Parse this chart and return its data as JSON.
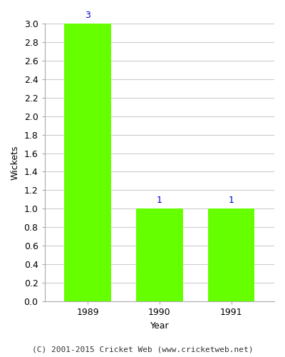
{
  "categories": [
    "1989",
    "1990",
    "1991"
  ],
  "values": [
    3,
    1,
    1
  ],
  "bar_color": "#66ff00",
  "bar_edge_color": "#66ff00",
  "xlabel": "Year",
  "ylabel": "Wickets",
  "ylim": [
    0,
    3.0
  ],
  "yticks": [
    0.0,
    0.2,
    0.4,
    0.6,
    0.8,
    1.0,
    1.2,
    1.4,
    1.6,
    1.8,
    2.0,
    2.2,
    2.4,
    2.6,
    2.8,
    3.0
  ],
  "label_color": "#0000cc",
  "label_fontsize": 9,
  "axis_label_fontsize": 9,
  "tick_fontsize": 9,
  "footer_text": "(C) 2001-2015 Cricket Web (www.cricketweb.net)",
  "footer_fontsize": 8,
  "background_color": "#ffffff",
  "grid_color": "#cccccc",
  "bar_width": 0.65
}
